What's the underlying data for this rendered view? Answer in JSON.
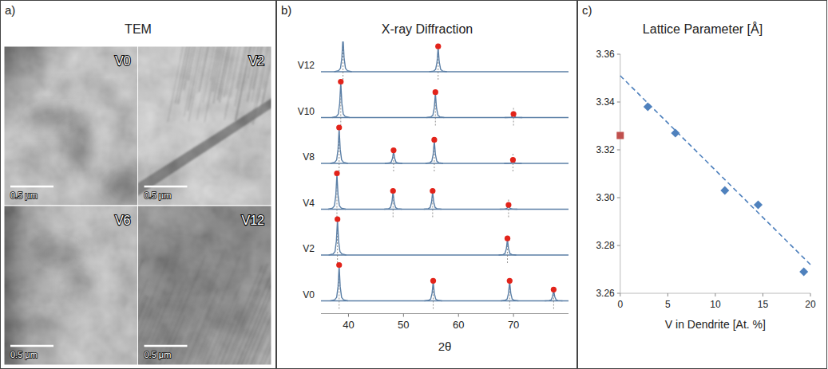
{
  "tem": {
    "panel_label": "a)",
    "title": "TEM",
    "images": [
      {
        "label": "V0",
        "scale_bar": "0.5 μm"
      },
      {
        "label": "V2",
        "scale_bar": "0.5 μm"
      },
      {
        "label": "V6",
        "scale_bar": "0.5 μm"
      },
      {
        "label": "V12",
        "scale_bar": "0.5 μm"
      }
    ]
  },
  "chart_data": [
    {
      "type": "line",
      "panel_label": "b)",
      "title": "X-ray Diffraction",
      "x_label": "2θ",
      "xlim": [
        35,
        80
      ],
      "xticks": [
        40,
        50,
        60,
        70
      ],
      "ylim": [
        0,
        1
      ],
      "tick_labels": "x",
      "color": "#5b7fa6",
      "marker": "circle",
      "series": [
        {
          "name": "V12",
          "x": [
            39.0,
            56.3
          ],
          "values": [
            1,
            0.7
          ]
        },
        {
          "name": "V10",
          "x": [
            38.6,
            55.8,
            70.0
          ],
          "values": [
            1,
            0.7,
            0.08
          ]
        },
        {
          "name": "V8",
          "x": [
            38.3,
            48.2,
            55.6,
            69.9
          ],
          "values": [
            1,
            0.35,
            0.65,
            0.08
          ]
        },
        {
          "name": "V4",
          "x": [
            37.9,
            48.1,
            55.3,
            69.1
          ],
          "values": [
            1,
            0.5,
            0.5,
            0.1
          ]
        },
        {
          "name": "V2",
          "x": [
            38.0,
            68.9
          ],
          "values": [
            1,
            0.45
          ]
        },
        {
          "name": "V0",
          "x": [
            38.3,
            55.4,
            69.3,
            77.3
          ],
          "values": [
            1,
            0.55,
            0.55,
            0.3
          ]
        }
      ]
    },
    {
      "type": "scatter",
      "panel_label": "c)",
      "title": "Lattice Parameter [Å]",
      "x_label": "V in Dendrite [At. %]",
      "xlim": [
        0,
        20
      ],
      "xticks": [
        0,
        5,
        10,
        15,
        20
      ],
      "ylim": [
        3.26,
        3.36
      ],
      "yticks": [
        3.26,
        3.28,
        {
          "value": 3.3,
          "label": "3.30"
        },
        3.32,
        3.34,
        3.36
      ],
      "series": [
        {
          "x": [
            0
          ],
          "values": [
            3.326
          ],
          "color": "#c0504d",
          "marker": "square"
        },
        {
          "x": [
            2.9,
            5.8,
            11.0,
            14.5,
            19.3
          ],
          "values": [
            3.338,
            3.327,
            3.303,
            3.297,
            3.269
          ],
          "color": "#4f81bd",
          "marker": "diamond"
        },
        {
          "type": "line",
          "line_style": "dashed",
          "x": [
            0,
            20
          ],
          "values": [
            3.351,
            3.272
          ],
          "color": "#4f81bd"
        }
      ]
    }
  ]
}
